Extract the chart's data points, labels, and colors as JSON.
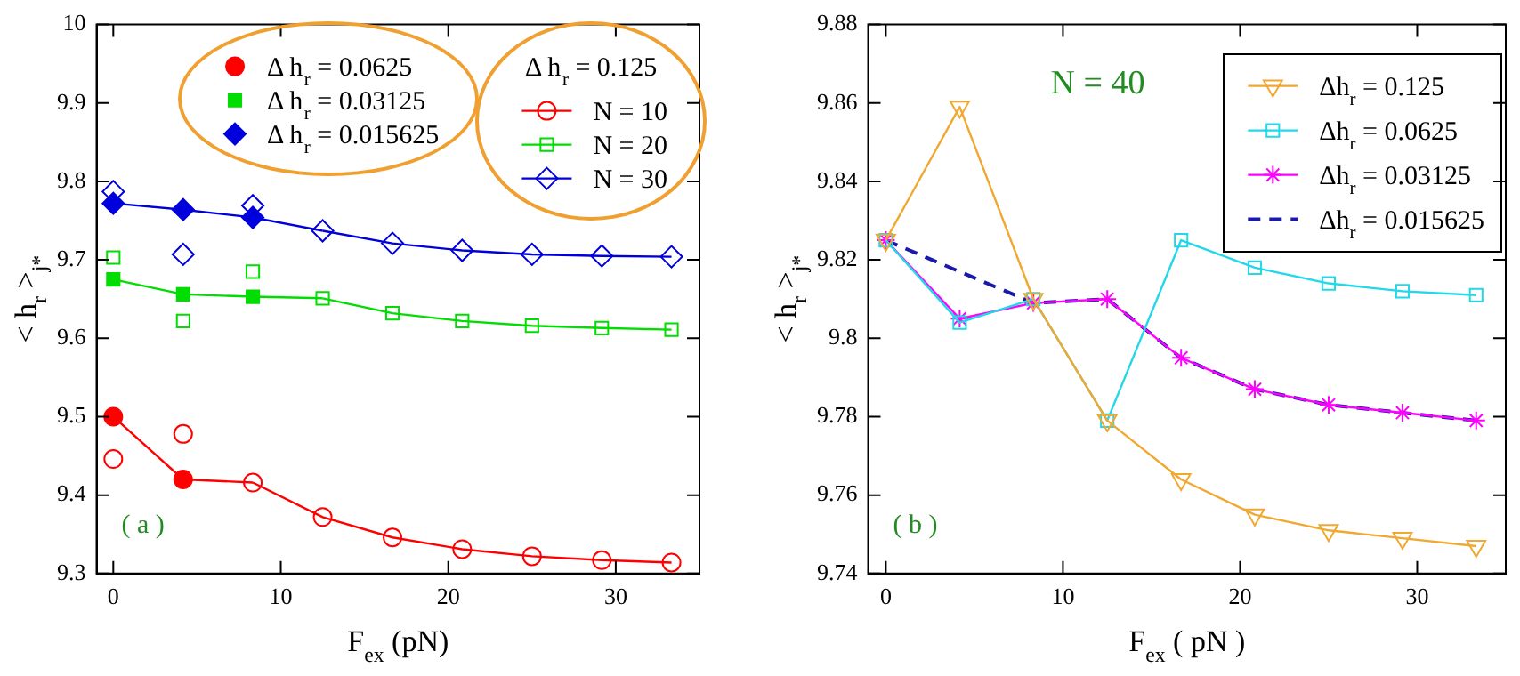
{
  "chart_data": [
    {
      "type": "line",
      "xlabel": "F$_{ex}$ (pN)",
      "ylabel": "< h$_{r}$ >$_{j*}$",
      "legend_title": "Δ h$_{r}$ = 0.125",
      "legend": "top",
      "grid": false,
      "annotations": [
        "( a )"
      ],
      "xlim": [
        -1,
        35
      ],
      "xticks": [
        0,
        10,
        20,
        30
      ],
      "ylim": [
        9.3,
        10
      ],
      "yticks": [
        9.3,
        9.4,
        9.5,
        9.6,
        9.7,
        9.8,
        9.9,
        10
      ],
      "series": [
        {
          "type": "scatter",
          "name": "Δ h$_{r}$ = 0.0625",
          "color": "#ff0000",
          "marker": "circle",
          "x": [
            0,
            4.17
          ],
          "values": [
            9.5,
            9.42
          ]
        },
        {
          "type": "scatter",
          "name": "Δ h$_{r}$ = 0.03125",
          "color": "#00dd00",
          "marker": "square",
          "x": [
            0,
            4.17,
            8.33
          ],
          "values": [
            9.675,
            9.656,
            9.653
          ]
        },
        {
          "type": "scatter",
          "name": "Δ h$_{r}$ = 0.015625",
          "color": "#0000dd",
          "marker": "diamond",
          "x": [
            0,
            4.17,
            8.33
          ],
          "values": [
            9.772,
            9.764,
            9.754
          ]
        },
        {
          "name": "N = 10",
          "color": "#ff0000",
          "marker": "circle",
          "x": [
            8.33,
            12.5,
            16.67,
            20.83,
            25,
            29.17,
            33.33
          ],
          "values": [
            9.416,
            9.372,
            9.346,
            9.331,
            9.322,
            9.317,
            9.314
          ]
        },
        {
          "name": "N = 20",
          "color": "#00dd00",
          "marker": "square",
          "x": [
            12.5,
            16.67,
            20.83,
            25,
            29.17,
            33.33
          ],
          "values": [
            9.651,
            9.632,
            9.622,
            9.616,
            9.613,
            9.611
          ]
        },
        {
          "name": "N = 30",
          "color": "#0000dd",
          "marker": "diamond",
          "x": [
            12.5,
            16.67,
            20.83,
            25,
            29.17,
            33.33
          ],
          "values": [
            9.737,
            9.721,
            9.712,
            9.707,
            9.705,
            9.704
          ]
        },
        {
          "type": "line",
          "color": "#ff0000",
          "marker": "none",
          "x": [
            0,
            4.17,
            8.33
          ],
          "values": [
            9.5,
            9.42,
            9.416
          ]
        },
        {
          "type": "line",
          "color": "#00dd00",
          "marker": "none",
          "x": [
            0,
            4.17,
            8.33,
            12.5
          ],
          "values": [
            9.675,
            9.656,
            9.653,
            9.651
          ]
        },
        {
          "type": "line",
          "color": "#0000dd",
          "marker": "none",
          "x": [
            0,
            4.17,
            8.33,
            12.5
          ],
          "values": [
            9.772,
            9.764,
            9.754,
            9.737
          ]
        },
        {
          "type": "line",
          "color": "#ff0000",
          "marker": "circle",
          "x": [
            0
          ],
          "values": [
            9.446
          ]
        },
        {
          "type": "line",
          "color": "#ff0000",
          "marker": "circle",
          "x": [
            4.17
          ],
          "values": [
            9.478
          ]
        },
        {
          "type": "line",
          "color": "#00dd00",
          "marker": "square",
          "x": [
            0
          ],
          "values": [
            9.703
          ]
        },
        {
          "type": "line",
          "color": "#00dd00",
          "marker": "square",
          "x": [
            4.17
          ],
          "values": [
            9.622
          ]
        },
        {
          "type": "line",
          "color": "#00dd00",
          "marker": "square",
          "x": [
            8.33
          ],
          "values": [
            9.685
          ]
        },
        {
          "type": "line",
          "color": "#0000dd",
          "marker": "diamond",
          "x": [
            0
          ],
          "values": [
            9.787
          ]
        },
        {
          "type": "line",
          "color": "#0000dd",
          "marker": "diamond",
          "x": [
            4.17
          ],
          "values": [
            9.707
          ]
        },
        {
          "type": "line",
          "color": "#0000dd",
          "marker": "diamond",
          "x": [
            8.33
          ],
          "values": [
            9.769
          ]
        }
      ]
    },
    {
      "type": "line",
      "xlabel": "F$_{ex}$ ( pN )",
      "ylabel": "< h$_{r}$ >$_{j*}$",
      "legend": "top right",
      "grid": false,
      "annotations": [
        "( b )",
        "N = 40"
      ],
      "xlim": [
        -1,
        35
      ],
      "xticks": [
        0,
        10,
        20,
        30
      ],
      "ylim": [
        9.74,
        9.88
      ],
      "yticks": [
        9.74,
        9.76,
        9.78,
        {
          "value": 9.8,
          "label": "9.8"
        },
        9.82,
        9.84,
        9.86,
        9.88
      ],
      "x": [
        0,
        4.17,
        8.33,
        12.5,
        16.67,
        20.83,
        25,
        29.17,
        33.33
      ],
      "series": [
        {
          "name": "Δh$_{r}$ = 0.125",
          "color": "#f0a830",
          "marker": "triangle",
          "values": [
            9.825,
            9.859,
            9.81,
            9.779,
            9.764,
            9.755,
            9.751,
            9.749,
            9.747
          ]
        },
        {
          "name": "Δh$_{r}$ = 0.0625",
          "color": "#22d8e8",
          "marker": "square",
          "values": [
            9.825,
            9.804,
            9.81,
            9.779,
            9.825,
            9.818,
            9.814,
            9.812,
            9.811
          ]
        },
        {
          "name": "Δh$_{r}$ = 0.03125",
          "color": "#ff00ff",
          "marker": "cross",
          "values": [
            9.825,
            9.805,
            9.809,
            9.81,
            9.795,
            9.787,
            9.783,
            9.781,
            9.779
          ]
        },
        {
          "name": "Δh$_{r}$ = 0.015625",
          "color": "#1a1aaa",
          "marker": "none",
          "line_style": "dashed",
          "x": [
            0,
            8.33,
            12.5,
            16.67,
            20.83,
            25,
            29.17,
            33.33
          ],
          "values": [
            9.825,
            9.809,
            9.81,
            9.795,
            9.787,
            9.783,
            9.781,
            9.779
          ]
        }
      ]
    }
  ]
}
